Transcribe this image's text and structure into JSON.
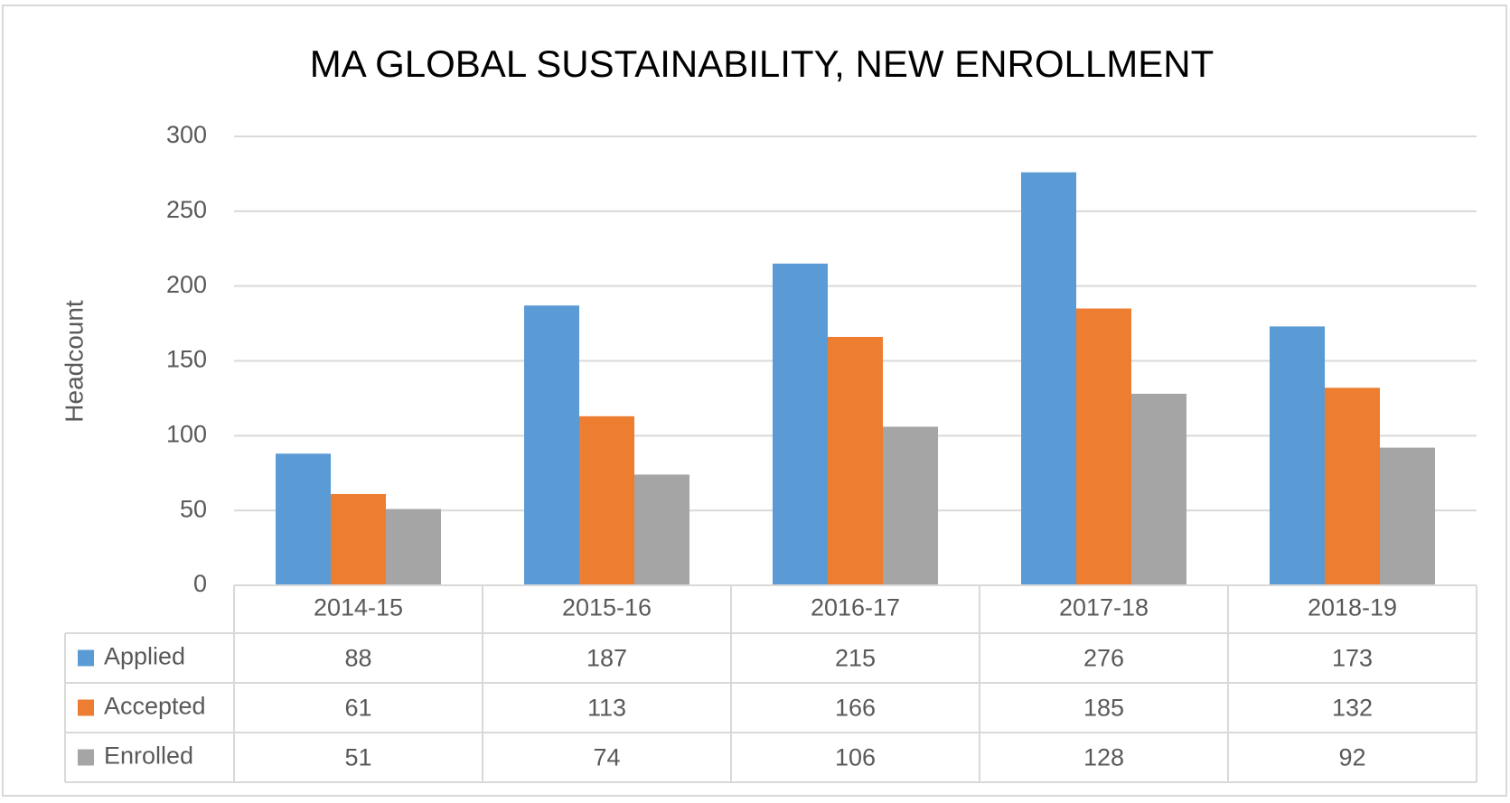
{
  "chart_data": {
    "type": "bar",
    "title": "MA GLOBAL SUSTAINABILITY, NEW ENROLLMENT",
    "y_label": "Headcount",
    "categories": [
      "2014-15",
      "2015-16",
      "2016-17",
      "2017-18",
      "2018-19"
    ],
    "series": [
      {
        "name": "Applied",
        "color": "#5b9bd5",
        "values": [
          88,
          187,
          215,
          276,
          173
        ]
      },
      {
        "name": "Accepted",
        "color": "#ed7d31",
        "values": [
          61,
          113,
          166,
          185,
          132
        ]
      },
      {
        "name": "Enrolled",
        "color": "#a5a5a5",
        "values": [
          51,
          74,
          106,
          128,
          92
        ]
      }
    ],
    "ylim": [
      0,
      300
    ],
    "yticks": [
      0,
      50,
      100,
      150,
      200,
      250,
      300
    ],
    "grid": true
  }
}
